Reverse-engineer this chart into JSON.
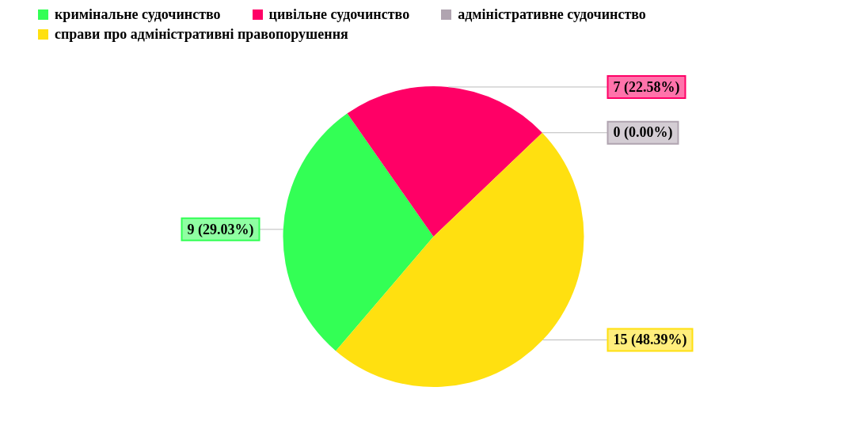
{
  "chart_data": {
    "type": "pie",
    "categories": [
      "кримінальне судочинство",
      "цивільне судочинство",
      "адміністративне судочинство",
      "справи про адміністративні правопорушення"
    ],
    "values": [
      9,
      7,
      0,
      15
    ],
    "colors": [
      "#33ff55",
      "#ff0066",
      "#b0a4b0",
      "#ffe010"
    ],
    "value_labels": [
      "9 (29.03%)",
      "7 (22.58%)",
      "0 (0.00%)",
      "15 (48.39%)"
    ],
    "legend": "top left"
  }
}
